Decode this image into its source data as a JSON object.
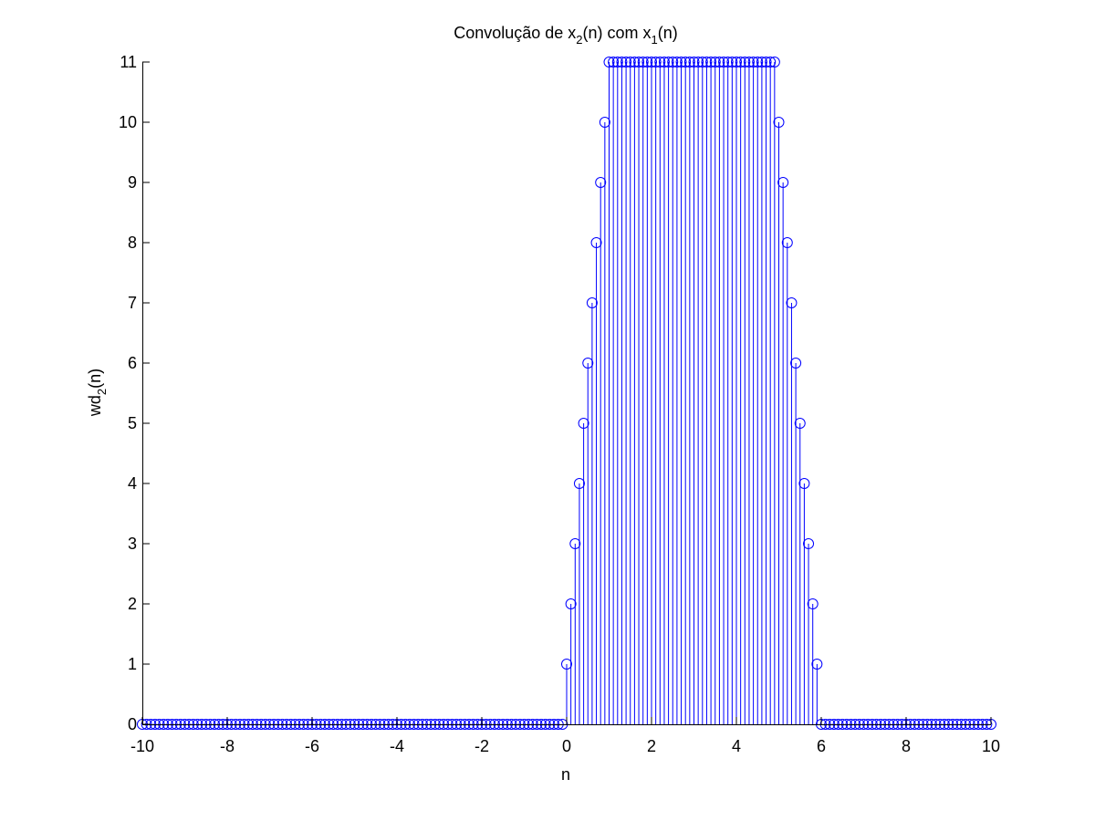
{
  "chart_data": {
    "type": "stem",
    "title": {
      "base": "Convolução de x",
      "sub1": "2",
      "mid": "(n) com x",
      "sub2": "1",
      "end": "(n)"
    },
    "xlabel": "n",
    "ylabel": {
      "base": "wd",
      "sub": "2",
      "end": "(n)"
    },
    "xlim": [
      -10,
      10
    ],
    "ylim": [
      0,
      11
    ],
    "xticks": [
      "-10",
      "-8",
      "-6",
      "-4",
      "-2",
      "0",
      "2",
      "4",
      "6",
      "8",
      "10"
    ],
    "yticks": [
      "0",
      "1",
      "2",
      "3",
      "4",
      "5",
      "6",
      "7",
      "8",
      "9",
      "10",
      "11"
    ],
    "grid": false,
    "marker": "circle",
    "n_start": -10,
    "n_step": 0.1,
    "values": [
      0,
      0,
      0,
      0,
      0,
      0,
      0,
      0,
      0,
      0,
      0,
      0,
      0,
      0,
      0,
      0,
      0,
      0,
      0,
      0,
      0,
      0,
      0,
      0,
      0,
      0,
      0,
      0,
      0,
      0,
      0,
      0,
      0,
      0,
      0,
      0,
      0,
      0,
      0,
      0,
      0,
      0,
      0,
      0,
      0,
      0,
      0,
      0,
      0,
      0,
      0,
      0,
      0,
      0,
      0,
      0,
      0,
      0,
      0,
      0,
      0,
      0,
      0,
      0,
      0,
      0,
      0,
      0,
      0,
      0,
      0,
      0,
      0,
      0,
      0,
      0,
      0,
      0,
      0,
      0,
      0,
      0,
      0,
      0,
      0,
      0,
      0,
      0,
      0,
      0,
      0,
      0,
      0,
      0,
      0,
      0,
      0,
      0,
      0,
      0,
      1,
      2,
      3,
      4,
      5,
      6,
      7,
      8,
      9,
      10,
      11,
      11,
      11,
      11,
      11,
      11,
      11,
      11,
      11,
      11,
      11,
      11,
      11,
      11,
      11,
      11,
      11,
      11,
      11,
      11,
      11,
      11,
      11,
      11,
      11,
      11,
      11,
      11,
      11,
      11,
      11,
      11,
      11,
      11,
      11,
      11,
      11,
      11,
      11,
      11,
      10,
      9,
      8,
      7,
      6,
      5,
      4,
      3,
      2,
      1,
      0,
      0,
      0,
      0,
      0,
      0,
      0,
      0,
      0,
      0,
      0,
      0,
      0,
      0,
      0,
      0,
      0,
      0,
      0,
      0,
      0,
      0,
      0,
      0,
      0,
      0,
      0,
      0,
      0,
      0,
      0,
      0,
      0,
      0,
      0,
      0,
      0,
      0,
      0,
      0,
      0
    ],
    "colors": {
      "series": "#0000ff",
      "axes": "#000000",
      "background": "#ffffff"
    }
  }
}
